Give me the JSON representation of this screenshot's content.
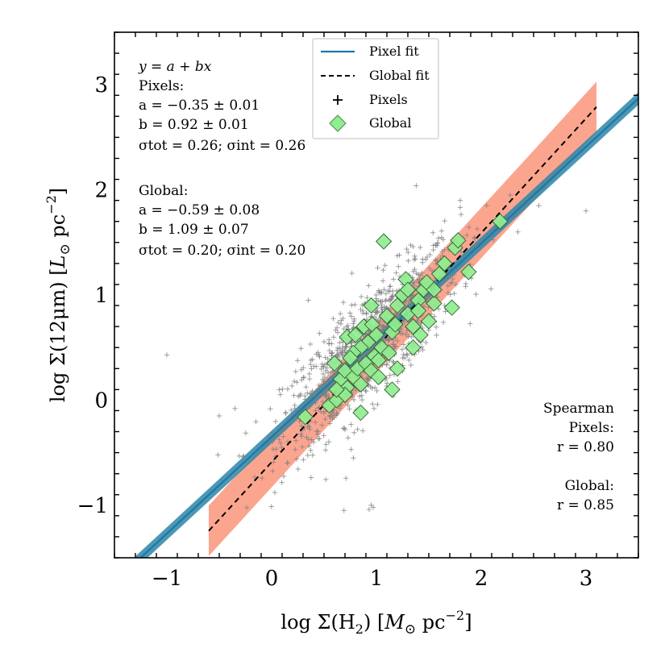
{
  "chart_data": {
    "type": "scatter",
    "xlabel": "log Σ(H₂) [M⊙ pc⁻²]",
    "ylabel": "log Σ(12μm) [L⊙ pc⁻²]",
    "xlabel_parts": {
      "pre": "log Σ(H",
      "sub": "2",
      "mid": ") [",
      "italic": "M",
      "sun": "⊙",
      "unit": " pc",
      "sup": "−2",
      "post": "]"
    },
    "ylabel_parts": {
      "pre": "log Σ(12μm) [",
      "italic": "L",
      "sun": "⊙",
      "unit": " pc",
      "sup": "−2",
      "post": "]"
    },
    "xlim": [
      -1.5,
      3.5
    ],
    "ylim": [
      -1.5,
      3.5
    ],
    "xticks": [
      -1,
      0,
      1,
      2,
      3
    ],
    "yticks": [
      -1,
      0,
      1,
      2,
      3
    ],
    "xtick_labels": [
      "−1",
      "0",
      "1",
      "2",
      "3"
    ],
    "ytick_labels": [
      "−1",
      "0",
      "1",
      "2",
      "3"
    ],
    "fits": [
      {
        "name": "Pixel fit",
        "a": -0.35,
        "b": 0.92,
        "x_range": [
          -1.5,
          3.5
        ],
        "band_halfwidth": 0.06,
        "color": "#1f77a6",
        "band_color": "#2b86a8",
        "style": "solid"
      },
      {
        "name": "Global fit",
        "a": -0.59,
        "b": 1.09,
        "x_range": [
          -0.6,
          3.1
        ],
        "band_halfwidth": 0.24,
        "color": "#000000",
        "band_color": "#fa8c70",
        "style": "dashed"
      }
    ],
    "pixels_summary": {
      "n_points": 1100,
      "a": -0.35,
      "b": 0.92,
      "scatter": 0.26,
      "x_center": 0.95,
      "x_spread": 0.42,
      "x_min": -0.6,
      "x_max": 3.1,
      "color": "#808080"
    },
    "pixel_outliers": [
      [
        -1.0,
        0.43
      ],
      [
        -0.5,
        -0.15
      ],
      [
        -0.35,
        -0.08
      ],
      [
        1.38,
        2.04
      ],
      [
        3.0,
        1.8
      ],
      [
        2.35,
        1.6
      ],
      [
        0.69,
        -1.05
      ],
      [
        0.95,
        -1.0
      ],
      [
        0.93,
        -1.04
      ],
      [
        0.97,
        -1.02
      ],
      [
        2.75,
        2.22
      ],
      [
        2.55,
        1.85
      ],
      [
        0.35,
        0.95
      ],
      [
        0.78,
        -0.55
      ],
      [
        0.4,
        -0.4
      ],
      [
        1.8,
        1.9
      ]
    ],
    "global_points": [
      [
        0.32,
        -0.16
      ],
      [
        0.55,
        -0.05
      ],
      [
        0.62,
        0.0
      ],
      [
        0.72,
        0.12
      ],
      [
        0.66,
        0.2
      ],
      [
        0.6,
        0.35
      ],
      [
        0.7,
        0.28
      ],
      [
        0.78,
        0.22
      ],
      [
        0.82,
        0.3
      ],
      [
        0.85,
        0.15
      ],
      [
        0.9,
        0.35
      ],
      [
        0.95,
        0.28
      ],
      [
        0.98,
        0.42
      ],
      [
        1.02,
        0.38
      ],
      [
        0.92,
        0.55
      ],
      [
        0.85,
        0.5
      ],
      [
        0.78,
        0.45
      ],
      [
        0.72,
        0.6
      ],
      [
        0.8,
        0.62
      ],
      [
        0.88,
        0.7
      ],
      [
        0.96,
        0.72
      ],
      [
        1.0,
        0.62
      ],
      [
        1.05,
        0.5
      ],
      [
        1.1,
        0.8
      ],
      [
        1.15,
        0.65
      ],
      [
        1.2,
        0.9
      ],
      [
        1.25,
        1.0
      ],
      [
        1.3,
        0.82
      ],
      [
        1.35,
        0.7
      ],
      [
        1.42,
        0.62
      ],
      [
        1.5,
        0.75
      ],
      [
        1.55,
        0.92
      ],
      [
        1.45,
        1.05
      ],
      [
        1.4,
        0.95
      ],
      [
        1.28,
        1.15
      ],
      [
        1.6,
        1.2
      ],
      [
        1.65,
        1.3
      ],
      [
        1.75,
        1.45
      ],
      [
        1.78,
        1.52
      ],
      [
        1.88,
        1.22
      ],
      [
        1.72,
        0.88
      ],
      [
        1.35,
        0.5
      ],
      [
        1.2,
        0.3
      ],
      [
        1.15,
        0.1
      ],
      [
        0.85,
        -0.12
      ],
      [
        1.07,
        1.51
      ],
      [
        2.18,
        1.7
      ],
      [
        1.02,
        0.22
      ],
      [
        0.7,
        0.05
      ],
      [
        1.12,
        0.45
      ],
      [
        0.95,
        0.9
      ],
      [
        1.3,
        1.05
      ],
      [
        1.48,
        1.12
      ],
      [
        1.18,
        0.72
      ],
      [
        0.62,
        0.1
      ],
      [
        0.75,
        0.4
      ],
      [
        1.4,
        0.85
      ],
      [
        1.55,
        1.05
      ]
    ],
    "legend": {
      "position": "upper-center",
      "entries": [
        {
          "label": "Pixel fit",
          "marker": "line",
          "color": "#1f77a6"
        },
        {
          "label": "Global fit",
          "marker": "dashed",
          "color": "#000000"
        },
        {
          "label": "Pixels",
          "marker": "plus",
          "color": "#000000"
        },
        {
          "label": "Global",
          "marker": "diamond",
          "color": "#90ee90"
        }
      ]
    },
    "annotations": {
      "equation": "y = a + bx",
      "pixels": {
        "heading": "Pixels:",
        "a": "a = −0.35 ± 0.01",
        "b": "b = 0.92 ± 0.01",
        "sigma": "σtot = 0.26; σint = 0.26"
      },
      "global": {
        "heading": "Global:",
        "a": "a = −0.59 ± 0.08",
        "b": "b = 1.09 ± 0.07",
        "sigma": "σtot = 0.20; σint = 0.20"
      },
      "spearman": {
        "heading": "Spearman",
        "pixels_label": "Pixels:",
        "pixels_r": "r = 0.80",
        "global_label": "Global:",
        "global_r": "r = 0.85"
      }
    }
  }
}
